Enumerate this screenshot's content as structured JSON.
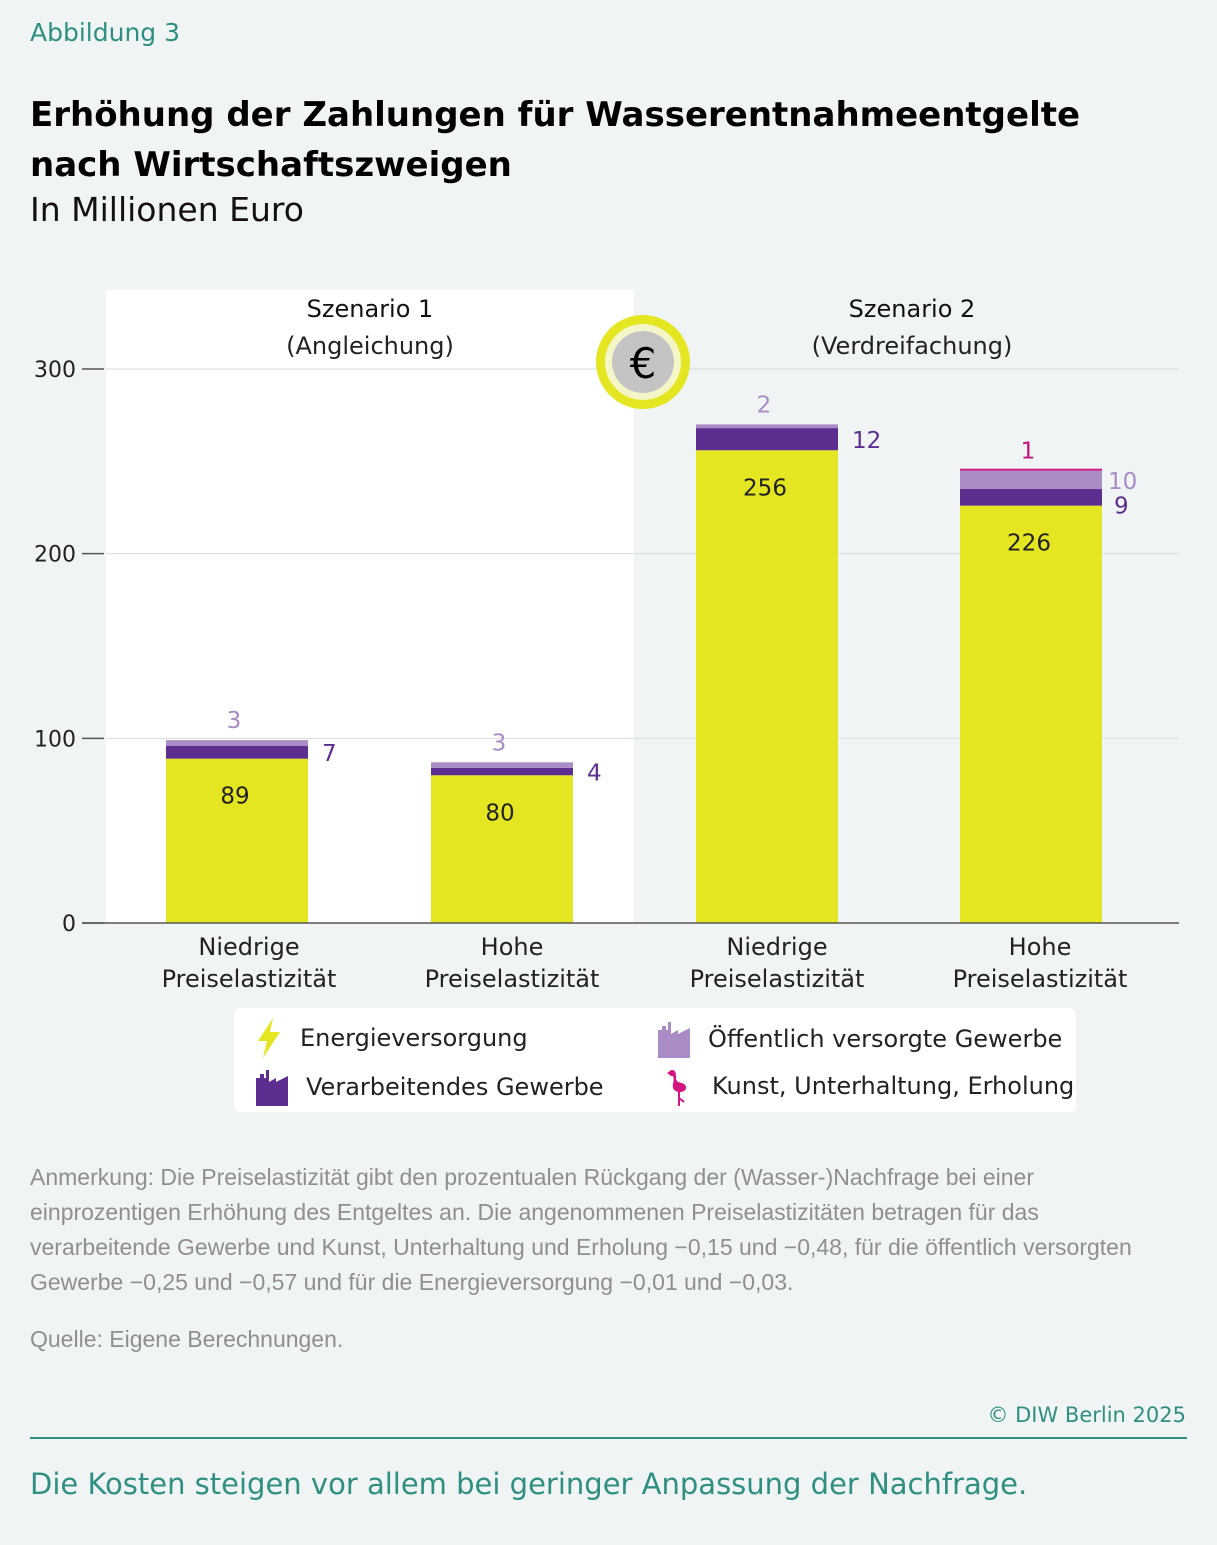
{
  "header": {
    "kicker": "Abbildung 3",
    "title": "Erhöhung der Zahlungen für Wasserentnahmeentgelte nach Wirtschaftszweigen",
    "subtitle": "In Millionen Euro"
  },
  "chart_data": {
    "type": "bar",
    "stacked": true,
    "ylim": [
      0,
      300
    ],
    "yticks": [
      0,
      100,
      200,
      300
    ],
    "grid": true,
    "groups": [
      {
        "name": "Szenario 1",
        "sublabel": "(Angleichung)",
        "shaded": false
      },
      {
        "name": "Szenario 2",
        "sublabel": "(Verdreifachung)",
        "shaded": true
      }
    ],
    "categories": [
      [
        "Niedrige",
        "Preiselastizität"
      ],
      [
        "Hohe",
        "Preiselastizität"
      ],
      [
        "Niedrige",
        "Preiselastizität"
      ],
      [
        "Hohe",
        "Preiselastizität"
      ]
    ],
    "series": [
      {
        "name": "Energieversorgung",
        "color": "#e3e620",
        "label_color": "#222222",
        "values": [
          89,
          80,
          256,
          226
        ],
        "labels": [
          "89",
          "80",
          "256",
          "226"
        ]
      },
      {
        "name": "Verarbeitendes Gewerbe",
        "color": "#5b2e8f",
        "label_color": "#5b2e8f",
        "values": [
          7,
          4,
          12,
          9
        ],
        "labels": [
          "7",
          "4",
          "12",
          "9"
        ]
      },
      {
        "name": "Öffentlich versorgte Gewerbe",
        "color": "#a98bc5",
        "label_color": "#a98bc5",
        "values": [
          3,
          3,
          2,
          10
        ],
        "labels": [
          "3",
          "3",
          "2",
          "10"
        ]
      },
      {
        "name": "Kunst, Unterhaltung, Erholung",
        "color": "#d4147f",
        "label_color": "#c4137a",
        "values": [
          0,
          0,
          0,
          1
        ],
        "labels": [
          "",
          "",
          "",
          "1"
        ]
      }
    ]
  },
  "legend": {
    "energy": "Energieversorgung",
    "manufacturing": "Verarbeitendes Gewerbe",
    "public": "Öffentlich versorgte Gewerbe",
    "arts": "Kunst, Unterhaltung, Erholung"
  },
  "footer": {
    "note": "Anmerkung: Die Preiselastizität gibt den prozentualen Rückgang der (Wasser-)Nachfrage bei einer einprozentigen Erhöhung des Entgeltes an. Die angenommenen Preiselastizitäten betragen für das verarbeitende Gewerbe und Kunst, Unterhaltung und Erholung −0,15 und −0,48, für die öffentlich versorgten Gewerbe −0,25 und −0,57 und für die Energieversorgung −0,01 und −0,03.",
    "source": "Quelle: Eigene Berechnungen.",
    "copyright": "© DIW Berlin 2025",
    "takeaway": "Die Kosten steigen vor allem bei geringer Anpassung der Nachfrage."
  }
}
